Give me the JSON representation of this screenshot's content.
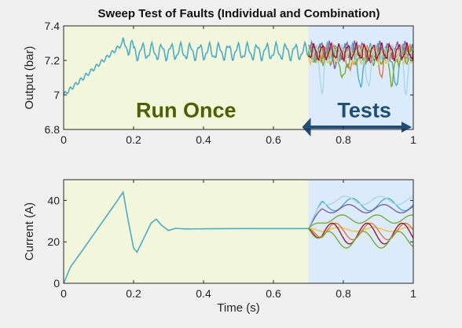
{
  "figure": {
    "title": "Sweep Test of Faults (Individual and Combination)",
    "colors": {
      "run_region": "#f2f7dc",
      "test_region": "#dcebfb",
      "baseline": "#4bacc6",
      "arrow": "#1f4e79",
      "run_text": "#4d5f00",
      "axes": "#262626"
    }
  },
  "chart_data": [
    {
      "type": "line",
      "title": "Sweep Test of Faults (Individual and Combination)",
      "xlabel": "",
      "ylabel": "Output (bar)",
      "xlim": [
        0,
        1
      ],
      "ylim": [
        6.8,
        7.4
      ],
      "xticks": [
        0,
        0.2,
        0.4,
        0.6,
        0.8,
        1
      ],
      "xtick_labels": [
        "0",
        "0.2",
        "0.4",
        "0.6",
        "0.8",
        "1"
      ],
      "yticks": [
        6.8,
        7,
        7.2,
        7.4
      ],
      "ytick_labels": [
        "6.8",
        "7",
        "7.2",
        "7.4"
      ],
      "grid": false,
      "regions": [
        {
          "label": "Run Once",
          "x_start": 0,
          "x_end": 0.7,
          "color": "#f2f7dc"
        },
        {
          "label": "Tests",
          "x_start": 0.7,
          "x_end": 1.0,
          "color": "#dcebfb"
        }
      ],
      "baseline": {
        "start": 7.0,
        "rise_to": 0.17,
        "peak": 7.3,
        "ripple_mean": 7.25,
        "ripple_amp": 0.04
      },
      "test_series": [
        {
          "color": "#4bacc6",
          "mean": 7.25,
          "dips": [
            0.85,
            0.95
          ],
          "dip_depth": 0.24
        },
        {
          "color": "#e07b39",
          "mean": 7.24,
          "dips": [
            0.82,
            0.91
          ],
          "dip_depth": 0.12
        },
        {
          "color": "#f0c040",
          "mean": 7.23,
          "dips": [],
          "dip_depth": 0
        },
        {
          "color": "#7f5fa8",
          "mean": 7.26,
          "dips": [
            0.78,
            0.88
          ],
          "dip_depth": 0.1
        },
        {
          "color": "#77ac30",
          "mean": 7.22,
          "dips": [
            0.8,
            0.94
          ],
          "dip_depth": 0.15
        },
        {
          "color": "#a8d8e8",
          "mean": 7.24,
          "dips": [
            0.74,
            0.87,
            0.98
          ],
          "dip_depth": 0.22
        },
        {
          "color": "#a2142f",
          "mean": 7.25,
          "dips": [],
          "dip_depth": 0
        }
      ]
    },
    {
      "type": "line",
      "title": "",
      "xlabel": "Time (s)",
      "ylabel": "Current (A)",
      "xlim": [
        0,
        1
      ],
      "ylim": [
        0,
        50
      ],
      "xticks": [
        0,
        0.2,
        0.4,
        0.6,
        0.8,
        1
      ],
      "xtick_labels": [
        "0",
        "0.2",
        "0.4",
        "0.6",
        "0.8",
        "1"
      ],
      "yticks": [
        0,
        20,
        40
      ],
      "ytick_labels": [
        "0",
        "20",
        "40"
      ],
      "grid": false,
      "regions": [
        {
          "label": "",
          "x_start": 0,
          "x_end": 0.7,
          "color": "#f2f7dc"
        },
        {
          "label": "",
          "x_start": 0.7,
          "x_end": 1.0,
          "color": "#dcebfb"
        }
      ],
      "baseline_points": [
        [
          0,
          0
        ],
        [
          0.02,
          8
        ],
        [
          0.05,
          15
        ],
        [
          0.1,
          27
        ],
        [
          0.15,
          39
        ],
        [
          0.17,
          44
        ],
        [
          0.185,
          30
        ],
        [
          0.2,
          17
        ],
        [
          0.21,
          15
        ],
        [
          0.23,
          22
        ],
        [
          0.25,
          29
        ],
        [
          0.265,
          31
        ],
        [
          0.28,
          28
        ],
        [
          0.3,
          25.5
        ],
        [
          0.32,
          26.5
        ],
        [
          0.35,
          26.2
        ],
        [
          0.4,
          26.3
        ],
        [
          0.5,
          26.4
        ],
        [
          0.6,
          26.4
        ],
        [
          0.7,
          26.4
        ]
      ],
      "test_series": [
        {
          "color": "#4bacc6",
          "mean": 38,
          "amp": 3,
          "period": 0.1
        },
        {
          "color": "#7f5fa8",
          "mean": 36,
          "amp": 2,
          "period": 0.1
        },
        {
          "color": "#a8d8e8",
          "mean": 40,
          "amp": 2,
          "period": 0.1
        },
        {
          "color": "#77ac30",
          "mean": 31,
          "amp": 2,
          "period": 0.1
        },
        {
          "color": "#f0c040",
          "mean": 26,
          "amp": 1,
          "period": 0.1
        },
        {
          "color": "#e07b39",
          "mean": 25,
          "amp": 4,
          "period": 0.1
        },
        {
          "color": "#a2142f",
          "mean": 24,
          "amp": 5,
          "period": 0.1
        },
        {
          "color": "#77ac30",
          "mean": 21,
          "amp": 4,
          "period": 0.1
        }
      ]
    }
  ]
}
